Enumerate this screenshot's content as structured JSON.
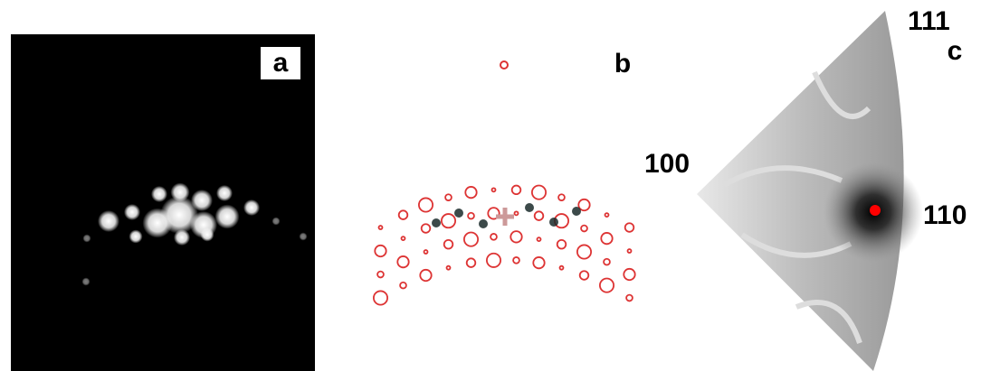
{
  "panels": [
    {
      "label": "a"
    },
    {
      "label": "b"
    },
    {
      "label": "c",
      "poles": [
        "111",
        "100",
        "110"
      ]
    }
  ]
}
